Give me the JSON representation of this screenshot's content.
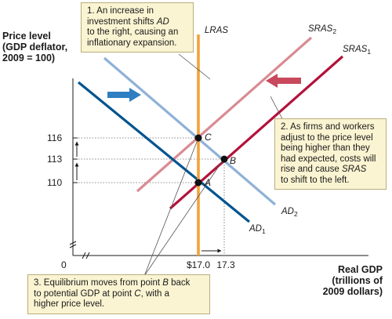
{
  "chart_data": {
    "type": "line",
    "title": "",
    "ylabel": [
      "Price level",
      "(GDP deflator,",
      "2009 = 100)"
    ],
    "xlabel": [
      "Real GDP",
      "(trillions of",
      "2009 dollars)"
    ],
    "origin_label": "0",
    "y_ticks": [
      {
        "value": 110,
        "label": "110"
      },
      {
        "value": 113,
        "label": "113"
      },
      {
        "value": 116,
        "label": "116"
      }
    ],
    "x_ticks": [
      {
        "value": 17.0,
        "label": "$17.0"
      },
      {
        "value": 17.3,
        "label": "17.3"
      }
    ],
    "series": [
      {
        "name": "LRAS",
        "base": "LRAS",
        "sub": "",
        "color": "#f0a23a"
      },
      {
        "name": "SRAS2",
        "base": "SRAS",
        "sub": "2",
        "color": "#d98b93"
      },
      {
        "name": "SRAS1",
        "base": "SRAS",
        "sub": "1",
        "color": "#b3123a"
      },
      {
        "name": "AD2",
        "base": "AD",
        "sub": "2",
        "color": "#8fb1d8"
      },
      {
        "name": "AD1",
        "base": "AD",
        "sub": "1",
        "color": "#00548e"
      }
    ],
    "points": [
      {
        "label": "A",
        "x": 17.0,
        "y": 110
      },
      {
        "label": "B",
        "x": 17.3,
        "y": 113
      },
      {
        "label": "C",
        "x": 17.0,
        "y": 116
      }
    ],
    "colors": {
      "arrow_ad": "#2e7fc1",
      "arrow_sras": "#c8485d",
      "callout_bg": "#fbf4d2"
    }
  },
  "callouts": [
    {
      "id": 1,
      "lines": [
        "1.  An increase in",
        "investment shifts <i>AD</i>",
        "to the right, causing an",
        "inflationary expansion."
      ]
    },
    {
      "id": 2,
      "lines": [
        "2. As firms and workers",
        "adjust to the price level",
        "being higher than they",
        "had expected, costs will",
        "rise and cause <i>SRAS</i>",
        "to shift to the left."
      ]
    },
    {
      "id": 3,
      "lines": [
        "3. Equilibrium moves from point <i>B</i> back",
        "to potential GDP at point <i>C</i>, with a",
        "higher price level."
      ]
    }
  ]
}
